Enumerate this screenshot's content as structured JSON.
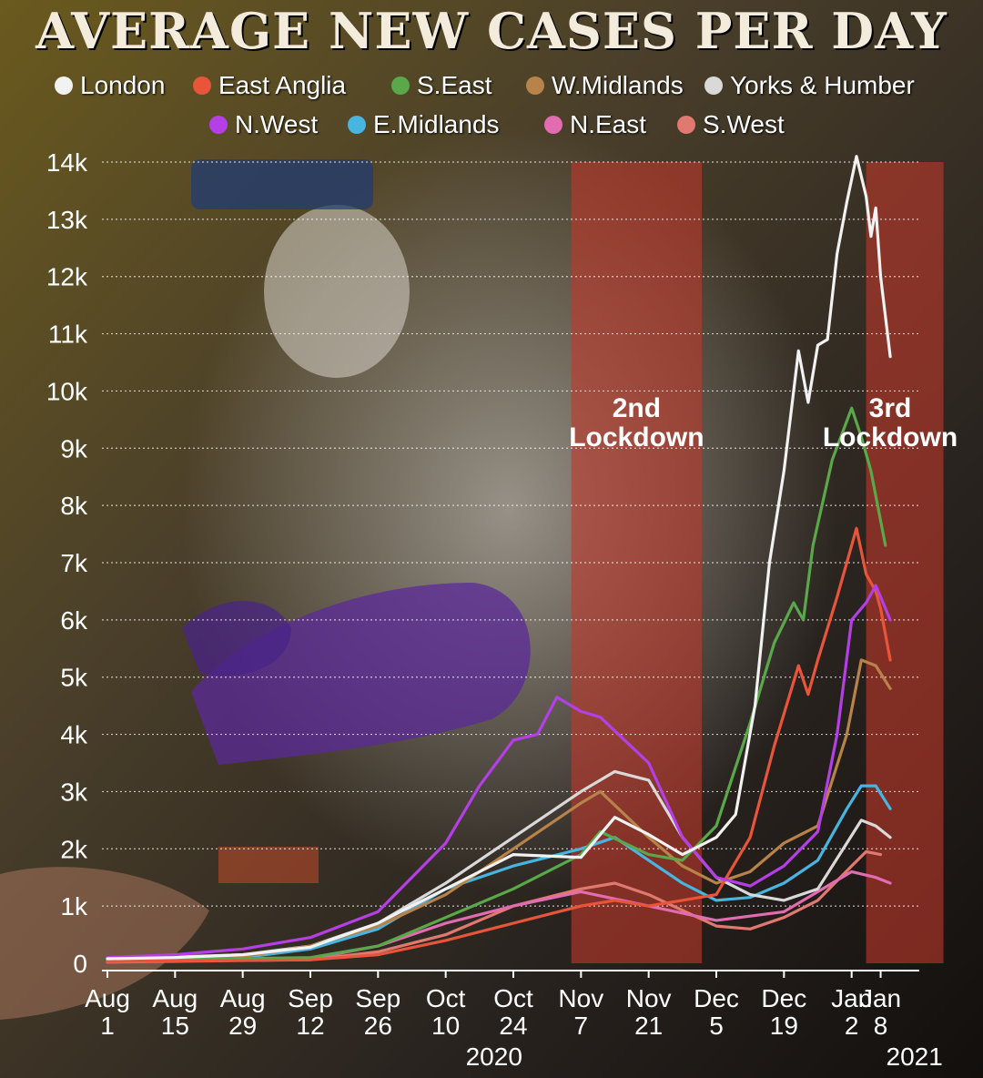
{
  "title": "AVERAGE NEW CASES PER DAY",
  "colors": {
    "London": "#f2f2f2",
    "East Anglia": "#e8553a",
    "S.East": "#5aa84a",
    "W.Midlands": "#b8834a",
    "Yorks & Humber": "#d9d9d9",
    "N.West": "#b53fe6",
    "E.Midlands": "#48b4e0",
    "N.East": "#e26cb0",
    "S.West": "#e07a70",
    "lockdown": "#c0392b"
  },
  "legend": [
    "London",
    "East Anglia",
    "S.East",
    "W.Midlands",
    "Yorks & Humber",
    "N.West",
    "E.Midlands",
    "N.East",
    "S.West"
  ],
  "chart_data": {
    "type": "line",
    "title": "AVERAGE NEW CASES PER DAY",
    "xlabel": "",
    "ylabel": "",
    "x_start": "Aug 1 2020",
    "xlim": [
      "2020-08-01",
      "2021-01-16"
    ],
    "ylim": [
      0,
      14000
    ],
    "grid": true,
    "legend_position": "top",
    "x_ticks": [
      {
        "date": "2020-08-01",
        "label": [
          "Aug",
          "1"
        ]
      },
      {
        "date": "2020-08-15",
        "label": [
          "Aug",
          "15"
        ]
      },
      {
        "date": "2020-08-29",
        "label": [
          "Aug",
          "29"
        ]
      },
      {
        "date": "2020-09-12",
        "label": [
          "Sep",
          "12"
        ]
      },
      {
        "date": "2020-09-26",
        "label": [
          "Sep",
          "26"
        ]
      },
      {
        "date": "2020-10-10",
        "label": [
          "Oct",
          "10"
        ]
      },
      {
        "date": "2020-10-24",
        "label": [
          "Oct",
          "24"
        ]
      },
      {
        "date": "2020-11-07",
        "label": [
          "Nov",
          "7"
        ]
      },
      {
        "date": "2020-11-21",
        "label": [
          "Nov",
          "21"
        ]
      },
      {
        "date": "2020-12-05",
        "label": [
          "Dec",
          "5"
        ]
      },
      {
        "date": "2020-12-19",
        "label": [
          "Dec",
          "19"
        ]
      },
      {
        "date": "2021-01-02",
        "label": [
          "Jan",
          "2"
        ]
      },
      {
        "date": "2021-01-08",
        "label": [
          "Jan",
          "8"
        ]
      }
    ],
    "year_labels": [
      {
        "text": "2020",
        "date": "2020-10-20"
      },
      {
        "text": "2021",
        "date": "2021-01-15"
      }
    ],
    "y_ticks": [
      {
        "value": 0,
        "label": "0"
      },
      {
        "value": 1000,
        "label": "1k"
      },
      {
        "value": 2000,
        "label": "2k"
      },
      {
        "value": 3000,
        "label": "3k"
      },
      {
        "value": 4000,
        "label": "4k"
      },
      {
        "value": 5000,
        "label": "5k"
      },
      {
        "value": 6000,
        "label": "6k"
      },
      {
        "value": 7000,
        "label": "7k"
      },
      {
        "value": 8000,
        "label": "8k"
      },
      {
        "value": 9000,
        "label": "9k"
      },
      {
        "value": 10000,
        "label": "10k"
      },
      {
        "value": 11000,
        "label": "11k"
      },
      {
        "value": 12000,
        "label": "12k"
      },
      {
        "value": 13000,
        "label": "13k"
      },
      {
        "value": 14000,
        "label": "14k"
      }
    ],
    "shaded_regions": [
      {
        "label": [
          "2nd",
          "Lockdown"
        ],
        "start": "2020-11-05",
        "end": "2020-12-02"
      },
      {
        "label": [
          "3rd",
          "Lockdown"
        ],
        "start": "2021-01-05",
        "end": "2021-01-21"
      }
    ],
    "series": [
      {
        "name": "London",
        "points": [
          [
            "2020-08-01",
            80
          ],
          [
            "2020-08-15",
            100
          ],
          [
            "2020-08-29",
            150
          ],
          [
            "2020-09-12",
            280
          ],
          [
            "2020-09-26",
            700
          ],
          [
            "2020-10-10",
            1300
          ],
          [
            "2020-10-24",
            1900
          ],
          [
            "2020-11-07",
            1850
          ],
          [
            "2020-11-14",
            2550
          ],
          [
            "2020-11-21",
            2250
          ],
          [
            "2020-11-28",
            1900
          ],
          [
            "2020-12-05",
            2200
          ],
          [
            "2020-12-09",
            2600
          ],
          [
            "2020-12-13",
            4500
          ],
          [
            "2020-12-16",
            7000
          ],
          [
            "2020-12-19",
            8600
          ],
          [
            "2020-12-22",
            10700
          ],
          [
            "2020-12-24",
            9800
          ],
          [
            "2020-12-26",
            10800
          ],
          [
            "2020-12-28",
            10900
          ],
          [
            "2020-12-30",
            12400
          ],
          [
            "2021-01-01",
            13300
          ],
          [
            "2021-01-03",
            14100
          ],
          [
            "2021-01-05",
            13400
          ],
          [
            "2021-01-06",
            12700
          ],
          [
            "2021-01-07",
            13200
          ],
          [
            "2021-01-08",
            12000
          ],
          [
            "2021-01-10",
            10600
          ]
        ]
      },
      {
        "name": "East Anglia",
        "points": [
          [
            "2020-08-01",
            30
          ],
          [
            "2020-09-12",
            60
          ],
          [
            "2020-09-26",
            150
          ],
          [
            "2020-10-10",
            400
          ],
          [
            "2020-10-24",
            700
          ],
          [
            "2020-11-07",
            1000
          ],
          [
            "2020-11-14",
            1100
          ],
          [
            "2020-11-21",
            1000
          ],
          [
            "2020-12-05",
            1200
          ],
          [
            "2020-12-12",
            2200
          ],
          [
            "2020-12-17",
            3800
          ],
          [
            "2020-12-22",
            5200
          ],
          [
            "2020-12-24",
            4700
          ],
          [
            "2020-12-26",
            5300
          ],
          [
            "2020-12-30",
            6400
          ],
          [
            "2021-01-03",
            7600
          ],
          [
            "2021-01-05",
            6800
          ],
          [
            "2021-01-07",
            6500
          ],
          [
            "2021-01-08",
            6200
          ],
          [
            "2021-01-10",
            5300
          ]
        ]
      },
      {
        "name": "S.East",
        "points": [
          [
            "2020-08-01",
            50
          ],
          [
            "2020-09-12",
            100
          ],
          [
            "2020-09-26",
            300
          ],
          [
            "2020-10-10",
            800
          ],
          [
            "2020-10-24",
            1300
          ],
          [
            "2020-11-07",
            1900
          ],
          [
            "2020-11-11",
            2300
          ],
          [
            "2020-11-21",
            1900
          ],
          [
            "2020-11-28",
            1800
          ],
          [
            "2020-12-05",
            2400
          ],
          [
            "2020-12-12",
            4200
          ],
          [
            "2020-12-17",
            5600
          ],
          [
            "2020-12-21",
            6300
          ],
          [
            "2020-12-23",
            6000
          ],
          [
            "2020-12-25",
            7300
          ],
          [
            "2020-12-29",
            8800
          ],
          [
            "2021-01-02",
            9700
          ],
          [
            "2021-01-04",
            9200
          ],
          [
            "2021-01-06",
            8600
          ],
          [
            "2021-01-09",
            7300
          ]
        ]
      },
      {
        "name": "W.Midlands",
        "points": [
          [
            "2020-08-01",
            60
          ],
          [
            "2020-08-29",
            120
          ],
          [
            "2020-09-12",
            300
          ],
          [
            "2020-09-26",
            650
          ],
          [
            "2020-10-10",
            1200
          ],
          [
            "2020-10-24",
            2000
          ],
          [
            "2020-11-07",
            2800
          ],
          [
            "2020-11-11",
            3000
          ],
          [
            "2020-11-21",
            2200
          ],
          [
            "2020-11-28",
            1700
          ],
          [
            "2020-12-05",
            1400
          ],
          [
            "2020-12-12",
            1600
          ],
          [
            "2020-12-19",
            2100
          ],
          [
            "2020-12-26",
            2400
          ],
          [
            "2021-01-01",
            4000
          ],
          [
            "2021-01-04",
            5300
          ],
          [
            "2021-01-07",
            5200
          ],
          [
            "2021-01-10",
            4800
          ]
        ]
      },
      {
        "name": "Yorks & Humber",
        "points": [
          [
            "2020-08-01",
            70
          ],
          [
            "2020-08-29",
            150
          ],
          [
            "2020-09-12",
            300
          ],
          [
            "2020-09-26",
            700
          ],
          [
            "2020-10-10",
            1400
          ],
          [
            "2020-10-24",
            2200
          ],
          [
            "2020-11-07",
            3000
          ],
          [
            "2020-11-14",
            3350
          ],
          [
            "2020-11-21",
            3200
          ],
          [
            "2020-11-28",
            2200
          ],
          [
            "2020-12-05",
            1500
          ],
          [
            "2020-12-12",
            1200
          ],
          [
            "2020-12-19",
            1100
          ],
          [
            "2020-12-26",
            1300
          ],
          [
            "2021-01-01",
            2100
          ],
          [
            "2021-01-04",
            2500
          ],
          [
            "2021-01-07",
            2400
          ],
          [
            "2021-01-10",
            2200
          ]
        ]
      },
      {
        "name": "N.West",
        "points": [
          [
            "2020-08-01",
            100
          ],
          [
            "2020-08-15",
            150
          ],
          [
            "2020-08-29",
            250
          ],
          [
            "2020-09-12",
            450
          ],
          [
            "2020-09-26",
            900
          ],
          [
            "2020-10-10",
            2100
          ],
          [
            "2020-10-17",
            3100
          ],
          [
            "2020-10-24",
            3900
          ],
          [
            "2020-10-29",
            4000
          ],
          [
            "2020-11-02",
            4650
          ],
          [
            "2020-11-07",
            4400
          ],
          [
            "2020-11-11",
            4300
          ],
          [
            "2020-11-21",
            3500
          ],
          [
            "2020-11-28",
            2200
          ],
          [
            "2020-12-05",
            1500
          ],
          [
            "2020-12-12",
            1350
          ],
          [
            "2020-12-19",
            1700
          ],
          [
            "2020-12-26",
            2300
          ],
          [
            "2020-12-30",
            4000
          ],
          [
            "2021-01-02",
            6000
          ],
          [
            "2021-01-05",
            6300
          ],
          [
            "2021-01-07",
            6600
          ],
          [
            "2021-01-10",
            6000
          ]
        ]
      },
      {
        "name": "E.Midlands",
        "points": [
          [
            "2020-08-01",
            50
          ],
          [
            "2020-08-29",
            100
          ],
          [
            "2020-09-12",
            250
          ],
          [
            "2020-09-26",
            600
          ],
          [
            "2020-10-10",
            1300
          ],
          [
            "2020-10-24",
            1700
          ],
          [
            "2020-11-07",
            2000
          ],
          [
            "2020-11-14",
            2200
          ],
          [
            "2020-11-21",
            1800
          ],
          [
            "2020-11-28",
            1400
          ],
          [
            "2020-12-05",
            1100
          ],
          [
            "2020-12-12",
            1150
          ],
          [
            "2020-12-19",
            1400
          ],
          [
            "2020-12-26",
            1800
          ],
          [
            "2021-01-01",
            2700
          ],
          [
            "2021-01-04",
            3100
          ],
          [
            "2021-01-07",
            3100
          ],
          [
            "2021-01-10",
            2700
          ]
        ]
      },
      {
        "name": "N.East",
        "points": [
          [
            "2020-08-01",
            20
          ],
          [
            "2020-09-12",
            80
          ],
          [
            "2020-09-26",
            300
          ],
          [
            "2020-10-10",
            700
          ],
          [
            "2020-10-24",
            1000
          ],
          [
            "2020-11-07",
            1250
          ],
          [
            "2020-11-21",
            1000
          ],
          [
            "2020-12-05",
            750
          ],
          [
            "2020-12-19",
            900
          ],
          [
            "2021-01-02",
            1600
          ],
          [
            "2021-01-07",
            1500
          ],
          [
            "2021-01-10",
            1400
          ]
        ]
      },
      {
        "name": "S.West",
        "points": [
          [
            "2020-08-01",
            20
          ],
          [
            "2020-09-12",
            60
          ],
          [
            "2020-09-26",
            200
          ],
          [
            "2020-10-10",
            500
          ],
          [
            "2020-10-24",
            1000
          ],
          [
            "2020-11-07",
            1300
          ],
          [
            "2020-11-14",
            1400
          ],
          [
            "2020-11-21",
            1200
          ],
          [
            "2020-12-05",
            650
          ],
          [
            "2020-12-12",
            600
          ],
          [
            "2020-12-19",
            800
          ],
          [
            "2020-12-26",
            1100
          ],
          [
            "2021-01-02",
            1700
          ],
          [
            "2021-01-05",
            1950
          ],
          [
            "2021-01-08",
            1900
          ]
        ]
      }
    ]
  }
}
